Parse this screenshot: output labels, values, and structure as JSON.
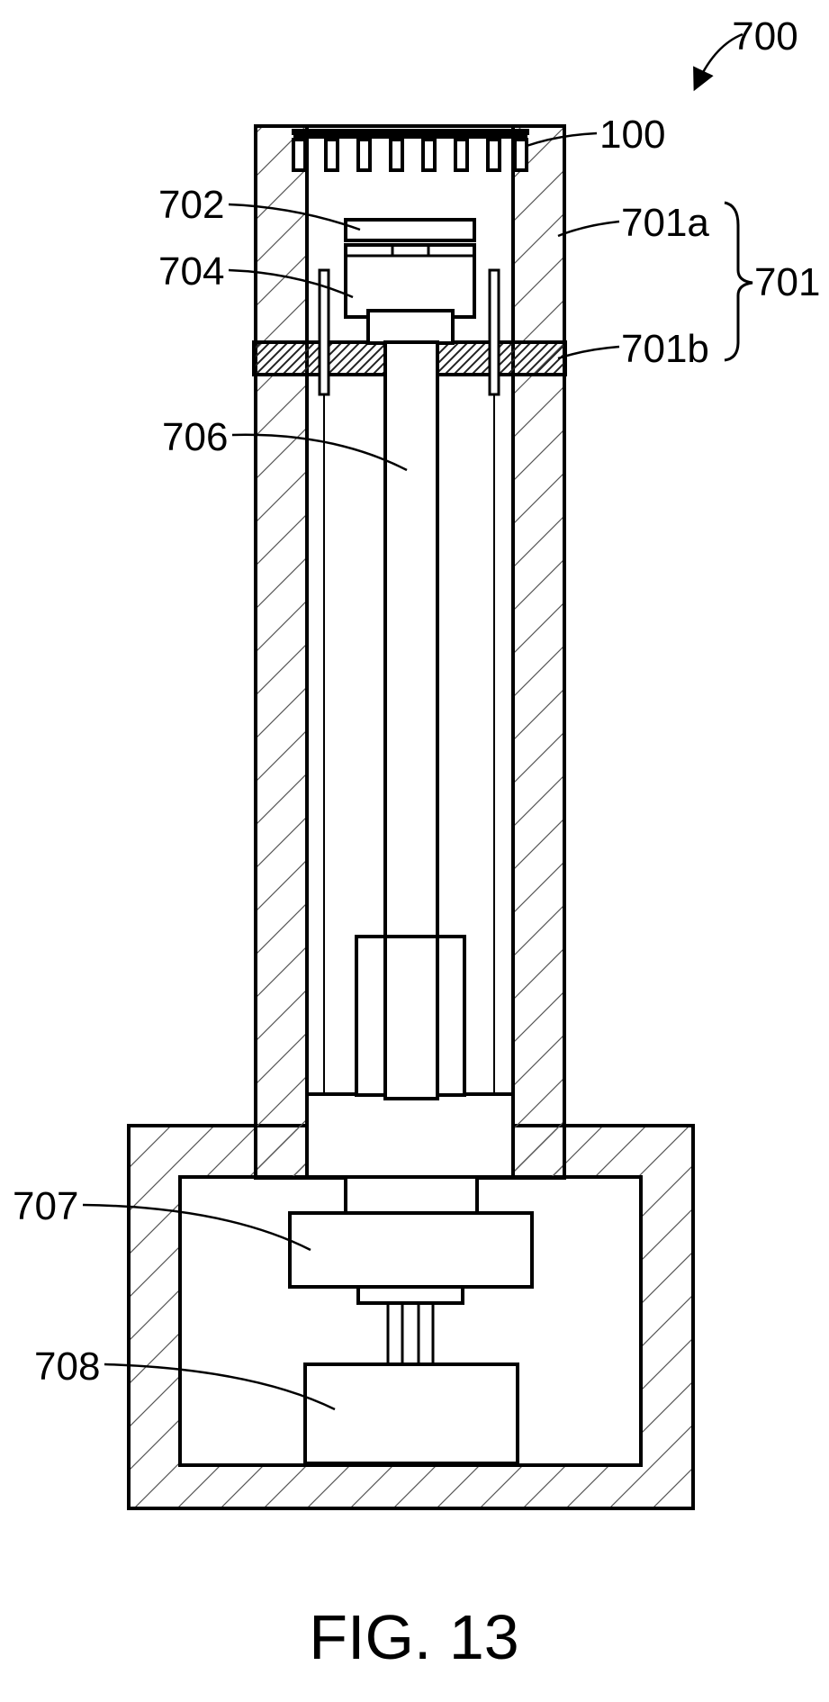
{
  "figure": {
    "caption": "FIG. 13",
    "labels": {
      "l700": "700",
      "l100": "100",
      "l701": "701",
      "l701a": "701a",
      "l701b": "701b",
      "l702": "702",
      "l704": "704",
      "l706": "706",
      "l707": "707",
      "l708": "708"
    }
  }
}
